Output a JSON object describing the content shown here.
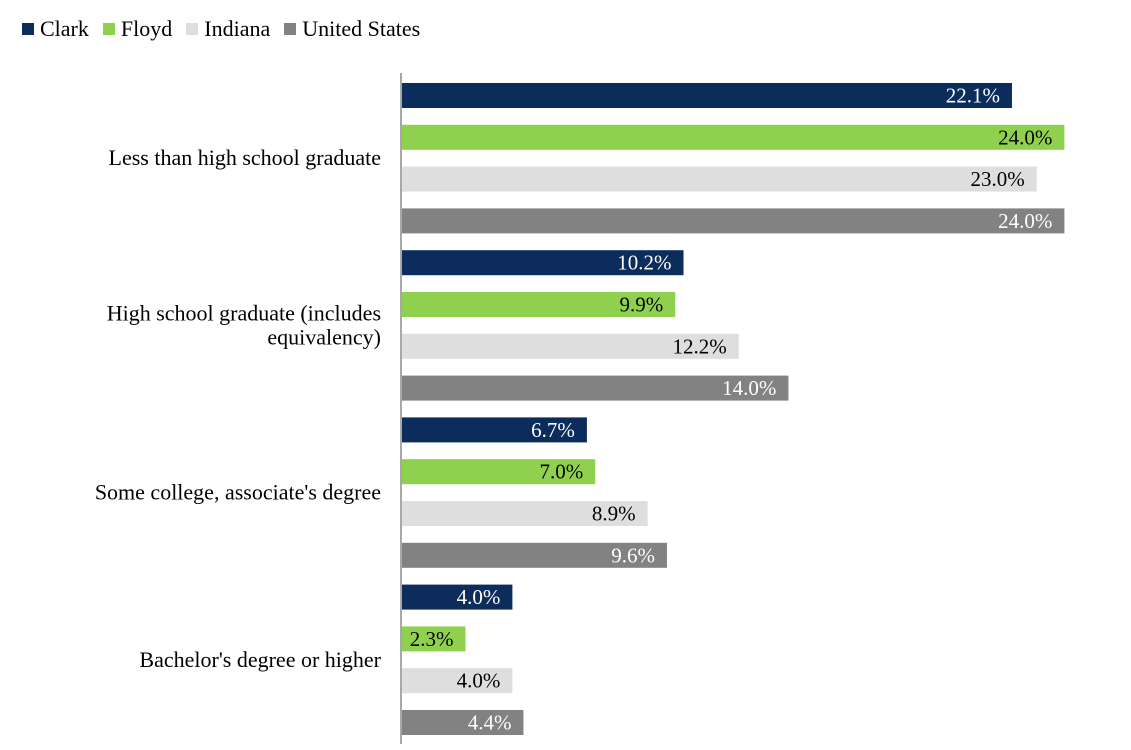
{
  "chart_data": {
    "type": "bar",
    "orientation": "horizontal",
    "title": "",
    "xlabel": "",
    "ylabel": "",
    "xlim": [
      0,
      27
    ],
    "grid": false,
    "legend_position": "top-left",
    "categories": [
      "Less than high school graduate",
      "High school graduate (includes equivalency)",
      "Some college, associate's degree",
      "Bachelor's degree or higher"
    ],
    "series": [
      {
        "name": "Clark",
        "color": "#0c2c5c",
        "label_color": "#ffffff",
        "values": [
          22.1,
          10.2,
          6.7,
          4.0
        ],
        "labels": [
          "22.1%",
          "10.2%",
          "6.7%",
          "4.0%"
        ]
      },
      {
        "name": "Floyd",
        "color": "#8fd14f",
        "label_color": "#000000",
        "values": [
          24.0,
          9.9,
          7.0,
          2.3
        ],
        "labels": [
          "24.0%",
          "9.9%",
          "7.0%",
          "2.3%"
        ]
      },
      {
        "name": "Indiana",
        "color": "#dedede",
        "label_color": "#000000",
        "values": [
          23.0,
          12.2,
          8.9,
          4.0
        ],
        "labels": [
          "23.0%",
          "12.2%",
          "8.9%",
          "4.0%"
        ]
      },
      {
        "name": "United States",
        "color": "#828282",
        "label_color": "#ffffff",
        "values": [
          24.0,
          14.0,
          9.6,
          4.4
        ],
        "labels": [
          "24.0%",
          "14.0%",
          "9.6%",
          "4.4%"
        ]
      }
    ]
  }
}
